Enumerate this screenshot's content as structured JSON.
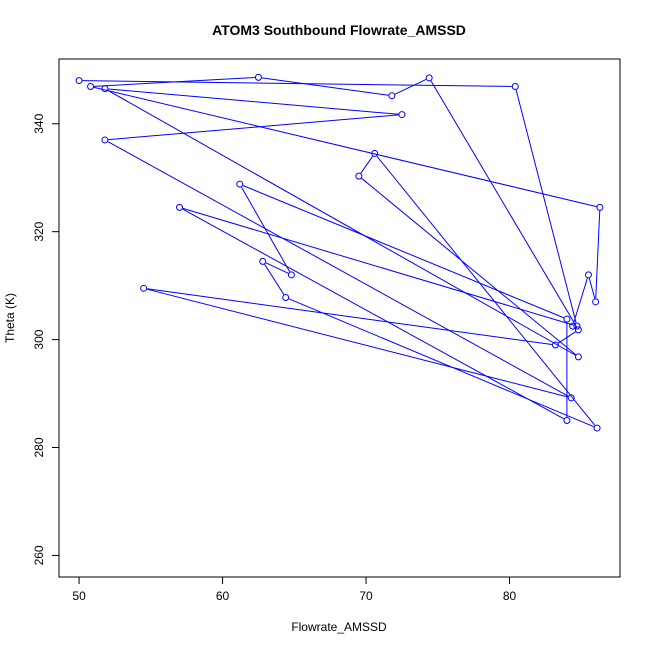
{
  "chart_data": {
    "type": "line",
    "title": "ATOM3 Southbound Flowrate_AMSSD",
    "xlabel": "Flowrate_AMSSD",
    "ylabel": "Theta (K)",
    "xlim": [
      48.6,
      87.7
    ],
    "ylim": [
      256.0,
      352.0
    ],
    "xticks": [
      50,
      60,
      70,
      80
    ],
    "yticks": [
      260,
      280,
      300,
      320,
      340
    ],
    "grid": false,
    "style": {
      "line_color": "#0000ff",
      "marker": "open-circle"
    },
    "series": [
      {
        "points": [
          {
            "x": 50.0,
            "y": 348.0
          },
          {
            "x": 80.4,
            "y": 346.9
          },
          {
            "x": 84.7,
            "y": 302.5
          },
          {
            "x": 57.0,
            "y": 324.5
          },
          {
            "x": 84.0,
            "y": 285.0
          },
          {
            "x": 84.0,
            "y": 303.8
          },
          {
            "x": 61.2,
            "y": 328.8
          },
          {
            "x": 64.8,
            "y": 312.0
          },
          {
            "x": 62.8,
            "y": 314.5
          },
          {
            "x": 64.4,
            "y": 307.8
          },
          {
            "x": 86.1,
            "y": 283.6
          },
          {
            "x": 70.6,
            "y": 334.5
          },
          {
            "x": 69.5,
            "y": 330.3
          },
          {
            "x": 84.8,
            "y": 296.8
          },
          {
            "x": 51.8,
            "y": 346.5
          },
          {
            "x": 72.5,
            "y": 341.7
          },
          {
            "x": 51.8,
            "y": 337.0
          },
          {
            "x": 84.3,
            "y": 289.2
          },
          {
            "x": 54.5,
            "y": 309.5
          },
          {
            "x": 83.2,
            "y": 299.0
          },
          {
            "x": 84.8,
            "y": 301.8
          },
          {
            "x": 74.4,
            "y": 348.5
          },
          {
            "x": 71.8,
            "y": 345.2
          },
          {
            "x": 62.5,
            "y": 348.6
          },
          {
            "x": 50.8,
            "y": 346.9
          },
          {
            "x": 86.3,
            "y": 324.5
          },
          {
            "x": 86.0,
            "y": 307.0
          },
          {
            "x": 85.5,
            "y": 312.0
          },
          {
            "x": 84.4,
            "y": 302.5
          }
        ]
      }
    ]
  }
}
